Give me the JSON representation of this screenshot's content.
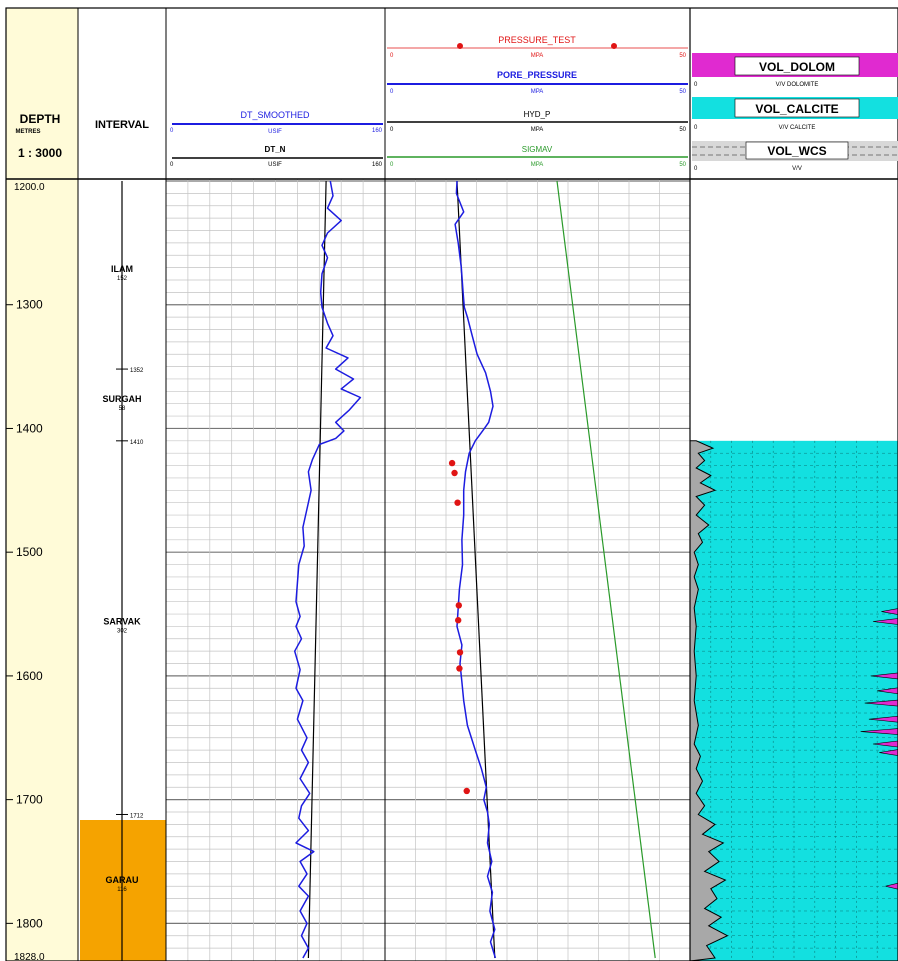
{
  "chart_data": {
    "type": "line",
    "title": "",
    "depth_header": {
      "label": "DEPTH",
      "unit": "METRES",
      "scale": "1 : 3000",
      "top_label": "1200.0",
      "bottom_label": "1828.0",
      "range": [
        1200,
        1828
      ],
      "ticks": [
        "1300",
        "1400",
        "1500",
        "1600",
        "1700",
        "1800"
      ]
    },
    "interval_track": {
      "header": "INTERVAL",
      "formations": [
        {
          "name": "ILAM",
          "thickness": "152",
          "top": 1200,
          "base": 1352
        },
        {
          "name": "SURGAH",
          "thickness": "58",
          "top": 1352,
          "base": 1410
        },
        {
          "name": "SARVAK",
          "thickness": "302",
          "top": 1410,
          "base": 1712
        },
        {
          "name": "GARAU",
          "thickness": "116",
          "top": 1712,
          "base": 1828
        }
      ],
      "top_markers": [
        "1352",
        "1410",
        "1712"
      ],
      "colors": {
        "garau": "#f5a300",
        "depth_bg": "#fffbd8"
      }
    },
    "sonic_track": {
      "curves": [
        {
          "name": "DT_SMOOTHED",
          "unit": "USIF",
          "min": "0",
          "max": "160",
          "color": "#1c1ce0"
        },
        {
          "name": "DT_N",
          "unit": "USIF",
          "min": "0",
          "max": "160",
          "color": "#000000"
        }
      ],
      "scale": [
        0,
        160
      ],
      "dt_n": [
        {
          "depth": 1200,
          "value": 117
        },
        {
          "depth": 1828,
          "value": 104
        }
      ],
      "dt_smoothed": [
        [
          1200,
          120
        ],
        [
          1212,
          122
        ],
        [
          1222,
          118
        ],
        [
          1232,
          128
        ],
        [
          1242,
          118
        ],
        [
          1252,
          114
        ],
        [
          1262,
          118
        ],
        [
          1275,
          114
        ],
        [
          1290,
          113
        ],
        [
          1302,
          114
        ],
        [
          1315,
          118
        ],
        [
          1325,
          122
        ],
        [
          1335,
          117
        ],
        [
          1343,
          133
        ],
        [
          1352,
          124
        ],
        [
          1360,
          137
        ],
        [
          1368,
          128
        ],
        [
          1375,
          142
        ],
        [
          1385,
          134
        ],
        [
          1395,
          124
        ],
        [
          1402,
          130
        ],
        [
          1408,
          124
        ],
        [
          1413,
          112
        ],
        [
          1425,
          107
        ],
        [
          1435,
          104
        ],
        [
          1450,
          106
        ],
        [
          1465,
          103
        ],
        [
          1480,
          100
        ],
        [
          1495,
          101
        ],
        [
          1510,
          97
        ],
        [
          1525,
          96
        ],
        [
          1540,
          95
        ],
        [
          1552,
          98
        ],
        [
          1560,
          95
        ],
        [
          1570,
          99
        ],
        [
          1580,
          94
        ],
        [
          1595,
          98
        ],
        [
          1610,
          95
        ],
        [
          1620,
          100
        ],
        [
          1635,
          96
        ],
        [
          1650,
          103
        ],
        [
          1660,
          99
        ],
        [
          1670,
          104
        ],
        [
          1683,
          98
        ],
        [
          1695,
          105
        ],
        [
          1705,
          99
        ],
        [
          1715,
          97
        ],
        [
          1725,
          104
        ],
        [
          1735,
          95
        ],
        [
          1742,
          108
        ],
        [
          1750,
          98
        ],
        [
          1760,
          103
        ],
        [
          1770,
          97
        ],
        [
          1778,
          104
        ],
        [
          1790,
          98
        ],
        [
          1800,
          103
        ],
        [
          1810,
          99
        ],
        [
          1820,
          104
        ],
        [
          1828,
          100
        ]
      ]
    },
    "pressure_track": {
      "curves": [
        {
          "name": "PRESSURE_TEST",
          "unit": "MPA",
          "min": "0",
          "max": "50",
          "color": "#e01414"
        },
        {
          "name": "PORE_PRESSURE",
          "unit": "MPA",
          "min": "0",
          "max": "50",
          "color": "#1c1ce0"
        },
        {
          "name": "HYD_P",
          "unit": "MPA",
          "min": "0",
          "max": "50",
          "color": "#000000"
        },
        {
          "name": "SIGMAV",
          "unit": "MPA",
          "min": "0",
          "max": "50",
          "color": "#2a9a2a"
        }
      ],
      "scale": [
        0,
        50
      ],
      "hyd_p": [
        {
          "depth": 1200,
          "value": 11.8
        },
        {
          "depth": 1828,
          "value": 18.0
        }
      ],
      "sigmav": [
        {
          "depth": 1200,
          "value": 28.2
        },
        {
          "depth": 1828,
          "value": 44.3
        }
      ],
      "pore_pressure": [
        [
          1200,
          11.8
        ],
        [
          1210,
          11.7
        ],
        [
          1225,
          12.9
        ],
        [
          1235,
          11.5
        ],
        [
          1250,
          12.0
        ],
        [
          1270,
          12.5
        ],
        [
          1290,
          12.8
        ],
        [
          1302,
          13.0
        ],
        [
          1310,
          13.5
        ],
        [
          1325,
          14.3
        ],
        [
          1340,
          15.1
        ],
        [
          1355,
          16.5
        ],
        [
          1370,
          17.3
        ],
        [
          1382,
          17.7
        ],
        [
          1395,
          17.0
        ],
        [
          1402,
          16.0
        ],
        [
          1410,
          14.8
        ],
        [
          1420,
          13.8
        ],
        [
          1435,
          13.2
        ],
        [
          1450,
          12.9
        ],
        [
          1470,
          12.9
        ],
        [
          1490,
          12.6
        ],
        [
          1510,
          12.7
        ],
        [
          1530,
          12.2
        ],
        [
          1545,
          12.0
        ],
        [
          1560,
          11.8
        ],
        [
          1575,
          12.6
        ],
        [
          1590,
          12.3
        ],
        [
          1605,
          12.6
        ],
        [
          1620,
          12.9
        ],
        [
          1640,
          13.5
        ],
        [
          1660,
          14.8
        ],
        [
          1675,
          15.8
        ],
        [
          1690,
          16.6
        ],
        [
          1700,
          16.2
        ],
        [
          1710,
          16.8
        ],
        [
          1720,
          17.1
        ],
        [
          1735,
          16.8
        ],
        [
          1750,
          17.5
        ],
        [
          1762,
          16.8
        ],
        [
          1775,
          17.6
        ],
        [
          1790,
          17.2
        ],
        [
          1805,
          18.0
        ],
        [
          1815,
          17.3
        ],
        [
          1828,
          18.1
        ]
      ],
      "pressure_tests": [
        [
          1428,
          11.0
        ],
        [
          1436,
          11.4
        ],
        [
          1460,
          11.9
        ],
        [
          1543,
          12.1
        ],
        [
          1555,
          12.0
        ],
        [
          1581,
          12.3
        ],
        [
          1594,
          12.2
        ],
        [
          1693,
          13.4
        ]
      ]
    },
    "lithology_track": {
      "curves": [
        {
          "name": "VOL_DOLOM",
          "unit": "V/V DOLOMITE",
          "min": "0",
          "max": "1",
          "color": "#e02ad0"
        },
        {
          "name": "VOL_CALCITE",
          "unit": "V/V CALCITE",
          "min": "0",
          "max": "1",
          "color": "#13e0e0"
        },
        {
          "name": "VOL_WCS",
          "unit": "V/V",
          "min": "0",
          "max": "1",
          "color": "#a8a8a8"
        }
      ],
      "data_start_depth": 1410,
      "vol_wcs": [
        [
          1410,
          0.03
        ],
        [
          1416,
          0.11
        ],
        [
          1420,
          0.04
        ],
        [
          1426,
          0.07
        ],
        [
          1432,
          0.03
        ],
        [
          1438,
          0.1
        ],
        [
          1444,
          0.05
        ],
        [
          1450,
          0.12
        ],
        [
          1455,
          0.03
        ],
        [
          1462,
          0.07
        ],
        [
          1470,
          0.03
        ],
        [
          1478,
          0.09
        ],
        [
          1485,
          0.04
        ],
        [
          1492,
          0.06
        ],
        [
          1500,
          0.02
        ],
        [
          1510,
          0.04
        ],
        [
          1520,
          0.02
        ],
        [
          1530,
          0.04
        ],
        [
          1545,
          0.02
        ],
        [
          1560,
          0.03
        ],
        [
          1580,
          0.02
        ],
        [
          1600,
          0.03
        ],
        [
          1620,
          0.02
        ],
        [
          1640,
          0.04
        ],
        [
          1655,
          0.02
        ],
        [
          1665,
          0.05
        ],
        [
          1675,
          0.03
        ],
        [
          1685,
          0.06
        ],
        [
          1695,
          0.03
        ],
        [
          1705,
          0.07
        ],
        [
          1712,
          0.04
        ],
        [
          1720,
          0.12
        ],
        [
          1728,
          0.06
        ],
        [
          1735,
          0.16
        ],
        [
          1742,
          0.09
        ],
        [
          1750,
          0.14
        ],
        [
          1758,
          0.07
        ],
        [
          1765,
          0.17
        ],
        [
          1772,
          0.1
        ],
        [
          1780,
          0.13
        ],
        [
          1788,
          0.07
        ],
        [
          1795,
          0.15
        ],
        [
          1802,
          0.09
        ],
        [
          1810,
          0.18
        ],
        [
          1818,
          0.08
        ],
        [
          1828,
          0.12
        ]
      ],
      "dolomite_spikes": [
        [
          1548,
          0.92
        ],
        [
          1556,
          0.88
        ],
        [
          1600,
          0.87
        ],
        [
          1612,
          0.9
        ],
        [
          1622,
          0.84
        ],
        [
          1635,
          0.86
        ],
        [
          1645,
          0.82
        ],
        [
          1655,
          0.88
        ],
        [
          1662,
          0.91
        ],
        [
          1770,
          0.94
        ]
      ]
    }
  }
}
